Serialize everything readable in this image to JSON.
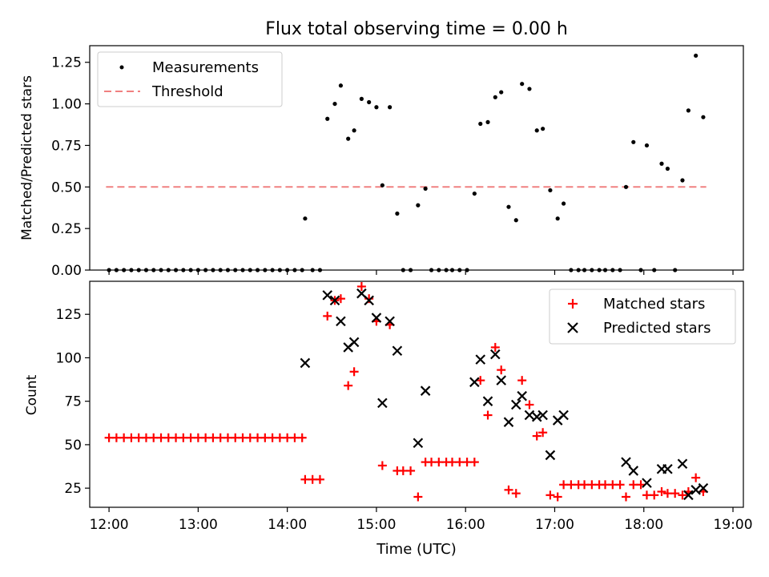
{
  "chart_data": [
    {
      "type": "scatter",
      "title": "Flux total observing time = 0.00 h",
      "xlabel": "",
      "ylabel": "Matched/Predicted stars",
      "ylim": [
        0,
        1.35
      ],
      "yticks": [
        "0.00",
        "0.25",
        "0.50",
        "0.75",
        "1.00",
        "1.25"
      ],
      "ytick_values": [
        0,
        0.25,
        0.5,
        0.75,
        1.0,
        1.25
      ],
      "xlim": [
        "11:47",
        "19:07"
      ],
      "grid": false,
      "legend_position": "top-left",
      "series": [
        {
          "name": "Measurements",
          "marker": "dot",
          "color": "#000000",
          "points": [
            [
              "12:00",
              0
            ],
            [
              "12:05",
              0
            ],
            [
              "12:10",
              0
            ],
            [
              "12:15",
              0
            ],
            [
              "12:20",
              0
            ],
            [
              "12:25",
              0
            ],
            [
              "12:30",
              0
            ],
            [
              "12:35",
              0
            ],
            [
              "12:40",
              0
            ],
            [
              "12:45",
              0
            ],
            [
              "12:50",
              0
            ],
            [
              "12:55",
              0
            ],
            [
              "13:00",
              0
            ],
            [
              "13:05",
              0
            ],
            [
              "13:10",
              0
            ],
            [
              "13:15",
              0
            ],
            [
              "13:20",
              0
            ],
            [
              "13:25",
              0
            ],
            [
              "13:30",
              0
            ],
            [
              "13:35",
              0
            ],
            [
              "13:40",
              0
            ],
            [
              "13:45",
              0
            ],
            [
              "13:50",
              0
            ],
            [
              "13:55",
              0
            ],
            [
              "14:00",
              0
            ],
            [
              "14:05",
              0
            ],
            [
              "14:10",
              0
            ],
            [
              "14:12",
              0.31
            ],
            [
              "14:17",
              0
            ],
            [
              "14:22",
              0
            ],
            [
              "14:27",
              0.91
            ],
            [
              "14:32",
              1.0
            ],
            [
              "14:36",
              1.11
            ],
            [
              "14:41",
              0.79
            ],
            [
              "14:45",
              0.84
            ],
            [
              "14:50",
              1.03
            ],
            [
              "14:55",
              1.01
            ],
            [
              "15:00",
              0.98
            ],
            [
              "15:04",
              0.51
            ],
            [
              "15:09",
              0.98
            ],
            [
              "15:14",
              0.34
            ],
            [
              "15:18",
              0
            ],
            [
              "15:23",
              0
            ],
            [
              "15:28",
              0.39
            ],
            [
              "15:33",
              0.49
            ],
            [
              "15:37",
              0
            ],
            [
              "15:42",
              0
            ],
            [
              "15:47",
              0
            ],
            [
              "15:51",
              0
            ],
            [
              "15:56",
              0
            ],
            [
              "16:01",
              0
            ],
            [
              "16:06",
              0.46
            ],
            [
              "16:10",
              0.88
            ],
            [
              "16:15",
              0.89
            ],
            [
              "16:20",
              1.04
            ],
            [
              "16:24",
              1.07
            ],
            [
              "16:29",
              0.38
            ],
            [
              "16:34",
              0.3
            ],
            [
              "16:38",
              1.12
            ],
            [
              "16:43",
              1.09
            ],
            [
              "16:48",
              0.84
            ],
            [
              "16:52",
              0.85
            ],
            [
              "16:57",
              0.48
            ],
            [
              "17:02",
              0.31
            ],
            [
              "17:06",
              0.4
            ],
            [
              "17:11",
              0
            ],
            [
              "17:16",
              0
            ],
            [
              "17:20",
              0
            ],
            [
              "17:25",
              0
            ],
            [
              "17:30",
              0
            ],
            [
              "17:34",
              0
            ],
            [
              "17:39",
              0
            ],
            [
              "17:44",
              0
            ],
            [
              "17:48",
              0.5
            ],
            [
              "17:53",
              0.77
            ],
            [
              "17:58",
              0
            ],
            [
              "18:02",
              0.75
            ],
            [
              "18:07",
              0
            ],
            [
              "18:12",
              0.64
            ],
            [
              "18:16",
              0.61
            ],
            [
              "18:21",
              0
            ],
            [
              "18:26",
              0.54
            ],
            [
              "18:30",
              0.96
            ],
            [
              "18:35",
              1.29
            ],
            [
              "18:40",
              0.92
            ]
          ]
        },
        {
          "name": "Threshold",
          "style": "dashed",
          "color": "#f08080",
          "y": 0.5,
          "x_range": [
            "11:58",
            "18:42"
          ]
        }
      ]
    },
    {
      "type": "scatter",
      "title": "",
      "xlabel": "Time (UTC)",
      "ylabel": "Count",
      "ylim": [
        14,
        144
      ],
      "yticks": [
        "25",
        "50",
        "75",
        "100",
        "125"
      ],
      "ytick_values": [
        25,
        50,
        75,
        100,
        125
      ],
      "xticks": [
        "12:00",
        "13:00",
        "14:00",
        "15:00",
        "16:00",
        "17:00",
        "18:00",
        "19:00"
      ],
      "xlim": [
        "11:47",
        "19:07"
      ],
      "grid": false,
      "legend_position": "top-right",
      "series": [
        {
          "name": "Matched stars",
          "marker": "plus",
          "color": "#ff0000",
          "points": [
            [
              "12:00",
              54
            ],
            [
              "12:05",
              54
            ],
            [
              "12:10",
              54
            ],
            [
              "12:15",
              54
            ],
            [
              "12:20",
              54
            ],
            [
              "12:25",
              54
            ],
            [
              "12:30",
              54
            ],
            [
              "12:35",
              54
            ],
            [
              "12:40",
              54
            ],
            [
              "12:45",
              54
            ],
            [
              "12:50",
              54
            ],
            [
              "12:55",
              54
            ],
            [
              "13:00",
              54
            ],
            [
              "13:05",
              54
            ],
            [
              "13:10",
              54
            ],
            [
              "13:15",
              54
            ],
            [
              "13:20",
              54
            ],
            [
              "13:25",
              54
            ],
            [
              "13:30",
              54
            ],
            [
              "13:35",
              54
            ],
            [
              "13:40",
              54
            ],
            [
              "13:45",
              54
            ],
            [
              "13:50",
              54
            ],
            [
              "13:55",
              54
            ],
            [
              "14:00",
              54
            ],
            [
              "14:05",
              54
            ],
            [
              "14:10",
              54
            ],
            [
              "14:12",
              30
            ],
            [
              "14:17",
              30
            ],
            [
              "14:22",
              30
            ],
            [
              "14:27",
              124
            ],
            [
              "14:32",
              133
            ],
            [
              "14:36",
              134
            ],
            [
              "14:41",
              84
            ],
            [
              "14:45",
              92
            ],
            [
              "14:50",
              141
            ],
            [
              "14:55",
              134
            ],
            [
              "15:00",
              121
            ],
            [
              "15:04",
              38
            ],
            [
              "15:09",
              119
            ],
            [
              "15:14",
              35
            ],
            [
              "15:18",
              35
            ],
            [
              "15:23",
              35
            ],
            [
              "15:28",
              20
            ],
            [
              "15:33",
              40
            ],
            [
              "15:37",
              40
            ],
            [
              "15:42",
              40
            ],
            [
              "15:47",
              40
            ],
            [
              "15:51",
              40
            ],
            [
              "15:56",
              40
            ],
            [
              "16:01",
              40
            ],
            [
              "16:06",
              40
            ],
            [
              "16:10",
              87
            ],
            [
              "16:15",
              67
            ],
            [
              "16:20",
              106
            ],
            [
              "16:24",
              93
            ],
            [
              "16:29",
              24
            ],
            [
              "16:34",
              22
            ],
            [
              "16:38",
              87
            ],
            [
              "16:43",
              73
            ],
            [
              "16:48",
              55
            ],
            [
              "16:52",
              57
            ],
            [
              "16:57",
              21
            ],
            [
              "17:02",
              20
            ],
            [
              "17:06",
              27
            ],
            [
              "17:11",
              27
            ],
            [
              "17:16",
              27
            ],
            [
              "17:20",
              27
            ],
            [
              "17:25",
              27
            ],
            [
              "17:30",
              27
            ],
            [
              "17:34",
              27
            ],
            [
              "17:39",
              27
            ],
            [
              "17:44",
              27
            ],
            [
              "17:48",
              20
            ],
            [
              "17:53",
              27
            ],
            [
              "17:58",
              27
            ],
            [
              "18:02",
              21
            ],
            [
              "18:07",
              21
            ],
            [
              "18:12",
              23
            ],
            [
              "18:16",
              22
            ],
            [
              "18:21",
              22
            ],
            [
              "18:26",
              21
            ],
            [
              "18:30",
              23
            ],
            [
              "18:35",
              31
            ],
            [
              "18:40",
              23
            ]
          ]
        },
        {
          "name": "Predicted stars",
          "marker": "x",
          "color": "#000000",
          "points": [
            [
              "14:12",
              97
            ],
            [
              "14:27",
              136
            ],
            [
              "14:32",
              133
            ],
            [
              "14:36",
              121
            ],
            [
              "14:41",
              106
            ],
            [
              "14:45",
              109
            ],
            [
              "14:50",
              137
            ],
            [
              "14:55",
              133
            ],
            [
              "15:00",
              123
            ],
            [
              "15:04",
              74
            ],
            [
              "15:09",
              121
            ],
            [
              "15:14",
              104
            ],
            [
              "15:28",
              51
            ],
            [
              "15:33",
              81
            ],
            [
              "16:06",
              86
            ],
            [
              "16:10",
              99
            ],
            [
              "16:15",
              75
            ],
            [
              "16:20",
              102
            ],
            [
              "16:24",
              87
            ],
            [
              "16:29",
              63
            ],
            [
              "16:34",
              73
            ],
            [
              "16:38",
              78
            ],
            [
              "16:43",
              67
            ],
            [
              "16:48",
              66
            ],
            [
              "16:52",
              67
            ],
            [
              "16:57",
              44
            ],
            [
              "17:02",
              64
            ],
            [
              "17:06",
              67
            ],
            [
              "17:48",
              40
            ],
            [
              "17:53",
              35
            ],
            [
              "18:02",
              28
            ],
            [
              "18:12",
              36
            ],
            [
              "18:16",
              36
            ],
            [
              "18:26",
              39
            ],
            [
              "18:30",
              21
            ],
            [
              "18:35",
              24
            ],
            [
              "18:40",
              25
            ]
          ]
        }
      ]
    }
  ]
}
